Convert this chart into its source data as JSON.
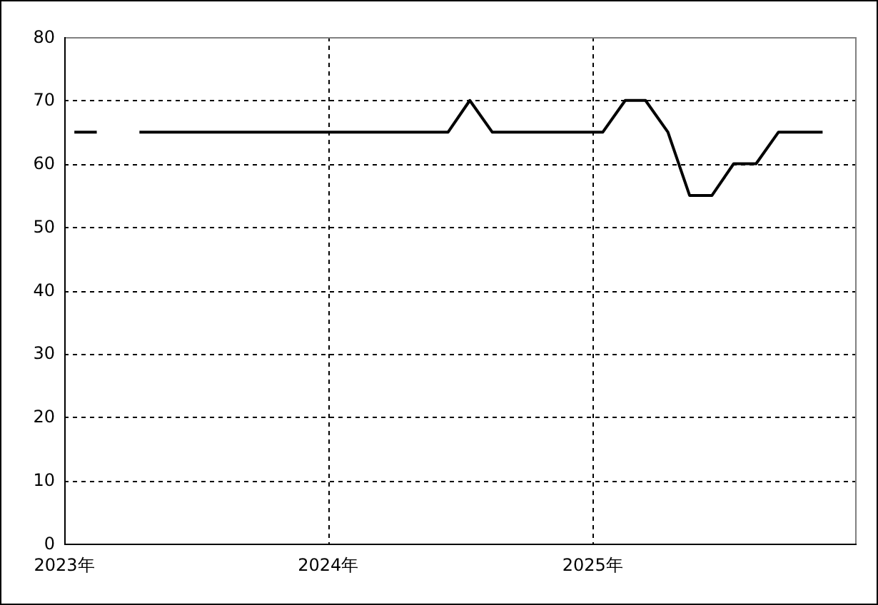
{
  "chart_data": {
    "type": "line",
    "x": [
      "2023-01-15",
      "2023-02-15",
      "2023-03-15",
      "2023-04-15",
      "2023-05-15",
      "2023-06-15",
      "2023-07-15",
      "2023-08-15",
      "2023-09-15",
      "2023-10-15",
      "2023-11-15",
      "2023-12-15",
      "2024-01-15",
      "2024-02-15",
      "2024-03-15",
      "2024-04-15",
      "2024-05-15",
      "2024-06-15",
      "2024-07-15",
      "2024-08-15",
      "2024-09-15",
      "2024-10-15",
      "2024-11-15",
      "2024-12-15",
      "2025-01-15",
      "2025-02-15",
      "2025-03-15",
      "2025-04-15",
      "2025-05-15",
      "2025-06-15",
      "2025-07-15",
      "2025-08-15",
      "2025-09-15",
      "2025-10-15",
      "2025-11-15"
    ],
    "series": [
      {
        "color": "#000000",
        "values": [
          65,
          65,
          null,
          65,
          65,
          65,
          65,
          65,
          65,
          65,
          65,
          65,
          65,
          65,
          65,
          65,
          65,
          65,
          70,
          65,
          65,
          65,
          65,
          65,
          65,
          70,
          70,
          65,
          55,
          55,
          60,
          60,
          65,
          65,
          65
        ]
      }
    ],
    "xlim": [
      "2023-01-01",
      "2026-01-01"
    ],
    "ylim": [
      0,
      80
    ],
    "xticks": [
      {
        "value": "2023-01-01",
        "label": "2023年"
      },
      {
        "value": "2024-01-01",
        "label": "2024年"
      },
      {
        "value": "2025-01-01",
        "label": "2025年"
      }
    ],
    "yticks": [
      0,
      10,
      20,
      30,
      40,
      50,
      60,
      70,
      80
    ],
    "grid": true,
    "line_style": "solid"
  }
}
